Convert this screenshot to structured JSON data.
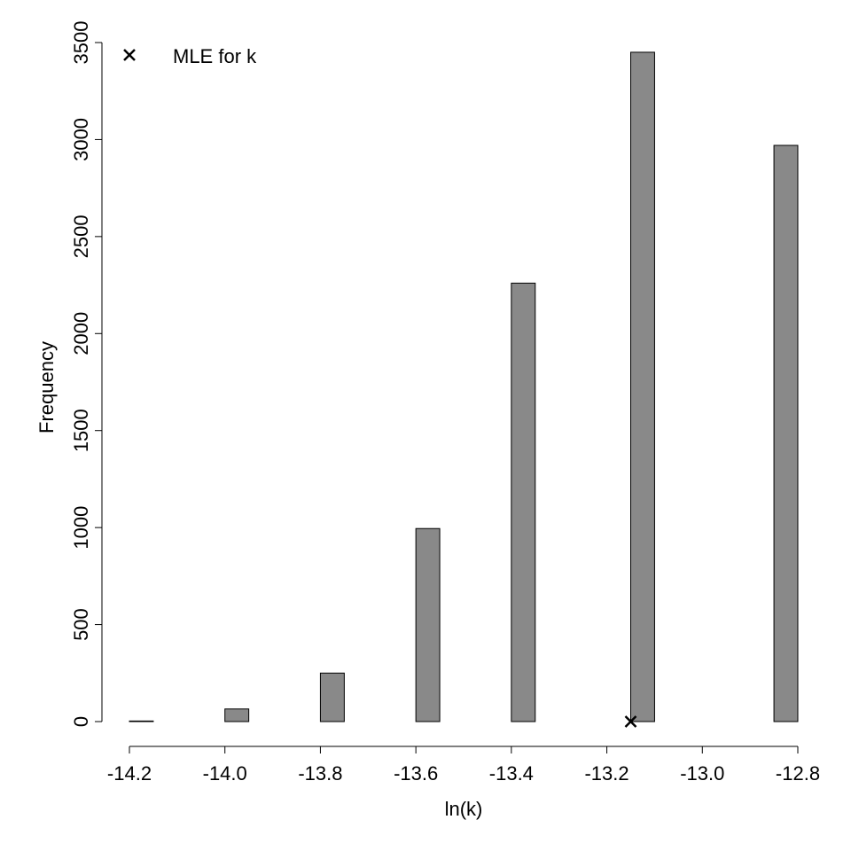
{
  "chart_data": {
    "type": "histogram",
    "xlabel": "ln(k)",
    "ylabel": "Frequency",
    "bins": [
      -14.2,
      -14.15,
      -14.1,
      -14.05,
      -14.0,
      -13.95,
      -13.9,
      -13.85,
      -13.8,
      -13.75,
      -13.7,
      -13.65,
      -13.6,
      -13.55,
      -13.5,
      -13.45,
      -13.4,
      -13.35,
      -13.3,
      -13.25,
      -13.2,
      -13.15,
      -13.1,
      -13.05,
      -13.0,
      -12.95,
      -12.9,
      -12.85,
      -12.8
    ],
    "counts": [
      3,
      0,
      0,
      0,
      65,
      0,
      0,
      0,
      250,
      0,
      0,
      0,
      995,
      0,
      0,
      0,
      2260,
      0,
      0,
      0,
      0,
      3450,
      0,
      0,
      0,
      0,
      0,
      2970
    ],
    "color": "#898989",
    "points": {
      "name": "MLE for k",
      "x": [
        -13.15
      ],
      "y": [
        0
      ],
      "marker": "x",
      "color": "#000000"
    },
    "legend": "topleft",
    "xlim": [
      -14.2,
      -12.8
    ],
    "ylim": [
      0,
      3500
    ],
    "xticks": [
      -14.2,
      {
        "value": -14.0,
        "label": "-14.0"
      },
      -13.8,
      -13.6,
      -13.4,
      -13.2,
      {
        "value": -13.0,
        "label": "-13.0"
      },
      -12.8
    ],
    "yticks": [
      0,
      500,
      1000,
      1500,
      2000,
      2500,
      3000,
      3500
    ]
  }
}
